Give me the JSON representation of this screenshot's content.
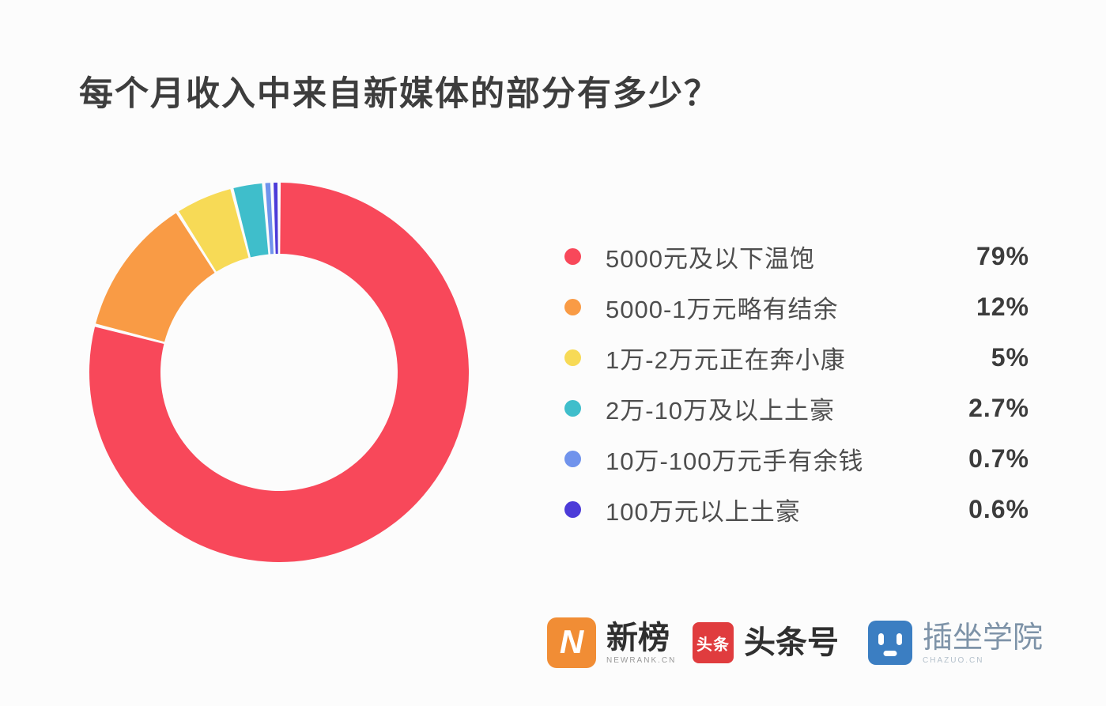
{
  "title": "每个月收入中来自新媒体的部分有多少？",
  "chart_data": {
    "type": "pie",
    "subtype": "donut",
    "title": "每个月收入中来自新媒体的部分有多少？",
    "categories": [
      "5000元及以下温饱",
      "5000-1万元略有结余",
      "1万-2万元正在奔小康",
      "2万-10万及以上土豪",
      "10万-100万元手有余钱",
      "100万元以上土豪"
    ],
    "values": [
      79,
      12,
      5,
      2.7,
      0.7,
      0.6
    ],
    "value_labels": [
      "79%",
      "12%",
      "5%",
      "2.7%",
      "0.7%",
      "0.6%"
    ],
    "colors": [
      "#F8485A",
      "#F99B45",
      "#F7DA56",
      "#3FBECB",
      "#7093EC",
      "#4C3BD8"
    ],
    "start_angle_deg": 0,
    "direction": "clockwise",
    "inner_radius_ratio": 0.625,
    "segment_gap_deg": 1.0,
    "legend_position": "right"
  },
  "legend": {
    "items": [
      {
        "label": "5000元及以下温饱",
        "value": "79%",
        "color": "#F8485A"
      },
      {
        "label": "5000-1万元略有结余",
        "value": "12%",
        "color": "#F99B45"
      },
      {
        "label": "1万-2万元正在奔小康",
        "value": "5%",
        "color": "#F7DA56"
      },
      {
        "label": "2万-10万及以上土豪",
        "value": "2.7%",
        "color": "#3FBECB"
      },
      {
        "label": "10万-100万元手有余钱",
        "value": "0.7%",
        "color": "#7093EC"
      },
      {
        "label": "100万元以上土豪",
        "value": "0.6%",
        "color": "#4C3BD8"
      }
    ]
  },
  "footer": {
    "logos": [
      {
        "name": "newrank",
        "label": "新榜",
        "sublabel": "NEWRANK.CN",
        "icon_text": "N",
        "icon_color": "#F18D35"
      },
      {
        "name": "toutiao",
        "label": "头条号",
        "icon_text": "头条",
        "icon_color": "#E03C3E"
      },
      {
        "name": "chazuo",
        "label": "插坐学院",
        "sublabel": "CHAZUO.CN",
        "icon_color": "#3B7EC2"
      }
    ]
  }
}
